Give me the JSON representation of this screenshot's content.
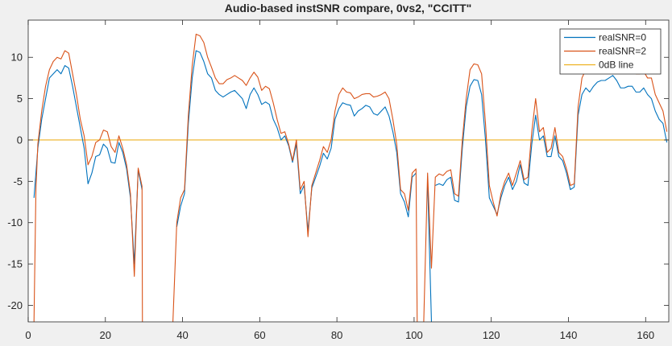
{
  "chart_data": {
    "type": "line",
    "title": "Audio-based instSNR compare, 0vs2, \"CCITT\"",
    "xlabel": "",
    "ylabel": "",
    "xlim": [
      0,
      166
    ],
    "ylim": [
      -22,
      14.5
    ],
    "xticks": [
      0,
      20,
      40,
      60,
      80,
      100,
      120,
      140,
      160
    ],
    "yticks": [
      -20,
      -15,
      -10,
      -5,
      0,
      5,
      10
    ],
    "grid": false,
    "legend_position": "top-right",
    "series": [
      {
        "name": "realSNR=0",
        "color": "#0072bd",
        "points": [
          [
            1.5,
            -7
          ],
          [
            2.5,
            -1
          ],
          [
            3.5,
            2.5
          ],
          [
            4.5,
            5
          ],
          [
            5.5,
            7.5
          ],
          [
            6.5,
            8
          ],
          [
            7.5,
            8.5
          ],
          [
            8.5,
            8
          ],
          [
            9.5,
            9
          ],
          [
            10.5,
            8.7
          ],
          [
            11.5,
            6.5
          ],
          [
            12.5,
            4
          ],
          [
            13.5,
            1.5
          ],
          [
            14.5,
            -1
          ],
          [
            15.5,
            -5.3
          ],
          [
            16.5,
            -4
          ],
          [
            17.5,
            -2
          ],
          [
            18.5,
            -1.8
          ],
          [
            19.5,
            -0.5
          ],
          [
            20.5,
            -1
          ],
          [
            21.5,
            -2.7
          ],
          [
            22.5,
            -2.8
          ],
          [
            23.5,
            -0.3
          ],
          [
            24.5,
            -1.5
          ],
          [
            25.5,
            -3.5
          ],
          [
            26.5,
            -7
          ],
          [
            27.5,
            -15
          ],
          [
            28.5,
            -3.6
          ],
          [
            29.5,
            -6
          ],
          null,
          [
            34,
            -13
          ],
          null,
          [
            38.5,
            -10.5
          ],
          [
            39.5,
            -8
          ],
          [
            40.5,
            -6.5
          ],
          [
            41.5,
            2
          ],
          [
            42.5,
            7.5
          ],
          [
            43.5,
            10.8
          ],
          [
            44.5,
            10.6
          ],
          [
            45.5,
            9.5
          ],
          [
            46.5,
            8
          ],
          [
            47.5,
            7.5
          ],
          [
            48.5,
            6
          ],
          [
            49.5,
            5.5
          ],
          [
            50.5,
            5.2
          ],
          [
            51.5,
            5.5
          ],
          [
            52.5,
            5.8
          ],
          [
            53.5,
            6
          ],
          [
            54.5,
            5.5
          ],
          [
            55.5,
            5
          ],
          [
            56.5,
            3.8
          ],
          [
            57.5,
            5.5
          ],
          [
            58.5,
            6.3
          ],
          [
            59.5,
            5.5
          ],
          [
            60.5,
            4.3
          ],
          [
            61.5,
            4.6
          ],
          [
            62.5,
            4.3
          ],
          [
            63.5,
            2.5
          ],
          [
            64.5,
            1.5
          ],
          [
            65.5,
            0
          ],
          [
            66.5,
            0.5
          ],
          [
            67.5,
            -0.7
          ],
          [
            68.5,
            -2.7
          ],
          [
            69.5,
            -0.5
          ],
          [
            70.5,
            -6.5
          ],
          [
            71.5,
            -5.5
          ],
          [
            72.5,
            -11
          ],
          [
            73.5,
            -5.8
          ],
          [
            74.5,
            -4.5
          ],
          [
            75.5,
            -3.2
          ],
          [
            76.5,
            -1.6
          ],
          [
            77.5,
            -2.3
          ],
          [
            78.5,
            -1
          ],
          [
            79.5,
            2.5
          ],
          [
            80.5,
            3.8
          ],
          [
            81.5,
            4.5
          ],
          [
            82.5,
            4.3
          ],
          [
            83.5,
            4.2
          ],
          [
            84.5,
            2.9
          ],
          [
            85.5,
            3.5
          ],
          [
            86.5,
            3.8
          ],
          [
            87.5,
            4.2
          ],
          [
            88.5,
            4
          ],
          [
            89.5,
            3.2
          ],
          [
            90.5,
            3
          ],
          [
            91.5,
            3.5
          ],
          [
            92.5,
            4
          ],
          [
            93.5,
            2.9
          ],
          [
            94.5,
            1
          ],
          [
            95.5,
            -1.5
          ],
          [
            96.5,
            -6.5
          ],
          [
            97.5,
            -7.5
          ],
          [
            98.5,
            -9.3
          ],
          [
            99.5,
            -4.5
          ],
          [
            100.5,
            -4
          ],
          null,
          [
            103.5,
            -5
          ],
          [
            104.5,
            -22
          ],
          null,
          [
            105.5,
            -5.5
          ],
          [
            106.5,
            -5.3
          ],
          [
            107.5,
            -5.5
          ],
          [
            108.5,
            -4.8
          ],
          [
            109.5,
            -4.5
          ],
          [
            110.5,
            -7.3
          ],
          [
            111.5,
            -7.5
          ],
          [
            112.5,
            -1
          ],
          [
            113.5,
            4
          ],
          [
            114.5,
            6.5
          ],
          [
            115.5,
            7.3
          ],
          [
            116.5,
            7.2
          ],
          [
            117.5,
            5.5
          ],
          [
            118.5,
            0
          ],
          [
            119.5,
            -7
          ],
          [
            120.5,
            -8
          ],
          [
            121.5,
            -9
          ],
          [
            122.5,
            -7
          ],
          [
            123.5,
            -5.5
          ],
          [
            124.5,
            -4.5
          ],
          [
            125.5,
            -6
          ],
          [
            126.5,
            -5
          ],
          [
            127.5,
            -3
          ],
          [
            128.5,
            -5.2
          ],
          [
            129.5,
            -5.5
          ],
          [
            130.5,
            -0.5
          ],
          [
            131.5,
            3
          ],
          [
            132.5,
            0
          ],
          [
            133.5,
            0.5
          ],
          [
            134.5,
            -2
          ],
          [
            135.5,
            -2
          ],
          [
            136.5,
            0.5
          ],
          [
            137.5,
            -2
          ],
          [
            138.5,
            -2.5
          ],
          [
            139.5,
            -4
          ],
          [
            140.5,
            -6
          ],
          [
            141.5,
            -5.7
          ],
          [
            142.5,
            3
          ],
          [
            143.5,
            5.5
          ],
          [
            144.5,
            6.3
          ],
          [
            145.5,
            5.8
          ],
          [
            146.5,
            6.5
          ],
          [
            147.5,
            7
          ],
          [
            148.5,
            7.2
          ],
          [
            149.5,
            7.2
          ],
          [
            150.5,
            7.5
          ],
          [
            151.5,
            7.8
          ],
          [
            152.5,
            7.2
          ],
          [
            153.5,
            6.3
          ],
          [
            154.5,
            6.3
          ],
          [
            155.5,
            6.5
          ],
          [
            156.5,
            6.5
          ],
          [
            157.5,
            5.8
          ],
          [
            158.5,
            5.8
          ],
          [
            159.5,
            6.3
          ],
          [
            160.5,
            5.5
          ],
          [
            161.5,
            5
          ],
          [
            162.5,
            3.5
          ],
          [
            163.5,
            2.5
          ],
          [
            164.5,
            2
          ],
          [
            165.5,
            -0.3
          ]
        ]
      },
      {
        "name": "realSNR=2",
        "color": "#d95319",
        "points": [
          [
            1.5,
            -22
          ],
          [
            2,
            -6
          ],
          [
            2.5,
            -0.5
          ],
          [
            3.5,
            3.5
          ],
          [
            4.5,
            6.5
          ],
          [
            5.5,
            8.5
          ],
          [
            6.5,
            9.5
          ],
          [
            7.5,
            10
          ],
          [
            8.5,
            9.8
          ],
          [
            9.5,
            10.8
          ],
          [
            10.5,
            10.5
          ],
          [
            11.5,
            8
          ],
          [
            12.5,
            5.5
          ],
          [
            13.5,
            2.5
          ],
          [
            14.5,
            0.5
          ],
          [
            15.5,
            -3
          ],
          [
            16.5,
            -2
          ],
          [
            17.5,
            -0.3
          ],
          [
            18.5,
            0
          ],
          [
            19.5,
            1.2
          ],
          [
            20.5,
            1
          ],
          [
            21.5,
            -0.8
          ],
          [
            22.5,
            -1.5
          ],
          [
            23.5,
            0.5
          ],
          [
            24.5,
            -1
          ],
          [
            25.5,
            -3
          ],
          [
            26.5,
            -6.5
          ],
          [
            27.5,
            -16.5
          ],
          [
            28.5,
            -3.4
          ],
          [
            29.5,
            -5.6
          ],
          [
            29.6,
            -22
          ],
          null,
          [
            37.5,
            -22
          ],
          [
            38.5,
            -10
          ],
          [
            39.5,
            -7
          ],
          [
            40.5,
            -6
          ],
          [
            41.5,
            3
          ],
          [
            42.5,
            9
          ],
          [
            43.5,
            12.8
          ],
          [
            44.5,
            12.6
          ],
          [
            45.5,
            11.8
          ],
          [
            46.5,
            10
          ],
          [
            47.5,
            8.8
          ],
          [
            48.5,
            7.5
          ],
          [
            49.5,
            6.8
          ],
          [
            50.5,
            6.8
          ],
          [
            51.5,
            7.3
          ],
          [
            52.5,
            7.5
          ],
          [
            53.5,
            7.8
          ],
          [
            54.5,
            7.5
          ],
          [
            55.5,
            7.2
          ],
          [
            56.5,
            6.6
          ],
          [
            57.5,
            7.5
          ],
          [
            58.5,
            8.2
          ],
          [
            59.5,
            7.6
          ],
          [
            60.5,
            6
          ],
          [
            61.5,
            6.5
          ],
          [
            62.5,
            6.2
          ],
          [
            63.5,
            4.5
          ],
          [
            64.5,
            2.5
          ],
          [
            65.5,
            0.8
          ],
          [
            66.5,
            1
          ],
          [
            67.5,
            -0.5
          ],
          [
            68.5,
            -2.5
          ],
          [
            69.5,
            0
          ],
          [
            70.5,
            -6
          ],
          [
            71.5,
            -5
          ],
          [
            72.5,
            -11.7
          ],
          [
            73.5,
            -5.5
          ],
          [
            74.5,
            -4
          ],
          [
            75.5,
            -2.5
          ],
          [
            76.5,
            -0.8
          ],
          [
            77.5,
            -1.5
          ],
          [
            78.5,
            0
          ],
          [
            79.5,
            3.5
          ],
          [
            80.5,
            5.5
          ],
          [
            81.5,
            6.3
          ],
          [
            82.5,
            5.8
          ],
          [
            83.5,
            5.7
          ],
          [
            84.5,
            5
          ],
          [
            85.5,
            5.2
          ],
          [
            86.5,
            5.5
          ],
          [
            87.5,
            5.6
          ],
          [
            88.5,
            5.6
          ],
          [
            89.5,
            5.2
          ],
          [
            90.5,
            5.3
          ],
          [
            91.5,
            5.5
          ],
          [
            92.5,
            5.8
          ],
          [
            93.5,
            5
          ],
          [
            94.5,
            2.5
          ],
          [
            95.5,
            -0.5
          ],
          [
            96.5,
            -6
          ],
          [
            97.5,
            -6.5
          ],
          [
            98.5,
            -8.5
          ],
          [
            99.5,
            -4
          ],
          [
            100.5,
            -3.5
          ],
          [
            100.8,
            -22
          ],
          null,
          [
            102.5,
            -22
          ],
          [
            103.5,
            -4
          ],
          [
            104.5,
            -15.5
          ],
          [
            105.5,
            -4.5
          ],
          [
            106.5,
            -4.1
          ],
          [
            107.5,
            -4.3
          ],
          [
            108.5,
            -3.8
          ],
          [
            109.5,
            -3.6
          ],
          [
            110.5,
            -6.5
          ],
          [
            111.5,
            -6.8
          ],
          [
            112.5,
            0
          ],
          [
            113.5,
            5
          ],
          [
            114.5,
            8.5
          ],
          [
            115.5,
            9.2
          ],
          [
            116.5,
            9.1
          ],
          [
            117.5,
            8
          ],
          [
            118.5,
            2
          ],
          [
            119.5,
            -5.5
          ],
          [
            120.5,
            -7.5
          ],
          [
            121.5,
            -9.2
          ],
          [
            122.5,
            -6.5
          ],
          [
            123.5,
            -5
          ],
          [
            124.5,
            -4
          ],
          [
            125.5,
            -5.5
          ],
          [
            126.5,
            -4
          ],
          [
            127.5,
            -2.5
          ],
          [
            128.5,
            -4.8
          ],
          [
            129.5,
            -4.5
          ],
          [
            130.5,
            1
          ],
          [
            131.5,
            5
          ],
          [
            132.5,
            1
          ],
          [
            133.5,
            1.5
          ],
          [
            134.5,
            -1.5
          ],
          [
            135.5,
            -1
          ],
          [
            136.5,
            1.5
          ],
          [
            137.5,
            -1.5
          ],
          [
            138.5,
            -2
          ],
          [
            139.5,
            -3.5
          ],
          [
            140.5,
            -5.5
          ],
          [
            141.5,
            -5.3
          ],
          [
            142.5,
            4
          ],
          [
            143.5,
            7.5
          ],
          [
            144.5,
            8.5
          ],
          [
            145.5,
            8.2
          ],
          [
            146.5,
            9
          ],
          [
            147.5,
            9.5
          ],
          [
            148.5,
            9.7
          ],
          [
            149.5,
            9.6
          ],
          [
            150.5,
            10
          ],
          [
            151.5,
            10.2
          ],
          [
            152.5,
            9.5
          ],
          [
            153.5,
            8.5
          ],
          [
            154.5,
            8.5
          ],
          [
            155.5,
            8.6
          ],
          [
            156.5,
            8.8
          ],
          [
            157.5,
            8
          ],
          [
            158.5,
            8
          ],
          [
            159.5,
            8.3
          ],
          [
            160.5,
            7.5
          ],
          [
            161.5,
            7.5
          ],
          [
            162.5,
            5.5
          ],
          [
            163.5,
            4.5
          ],
          [
            164.5,
            3.5
          ],
          [
            165.5,
            1
          ]
        ]
      },
      {
        "name": "0dB line",
        "color": "#edb120",
        "points": [
          [
            0,
            0
          ],
          [
            166,
            0
          ]
        ]
      }
    ]
  }
}
